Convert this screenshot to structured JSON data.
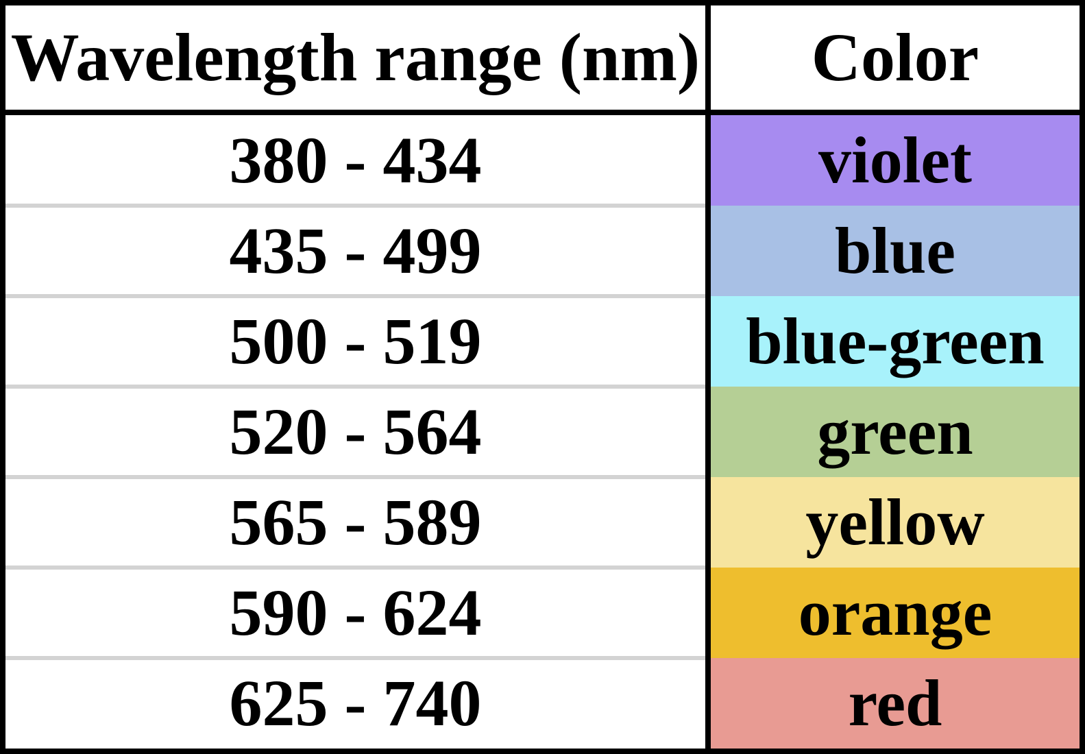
{
  "table": {
    "headers": {
      "range": "Wavelength range (nm)",
      "color": "Color"
    },
    "rows": [
      {
        "range": "380 - 434",
        "color": "violet",
        "swatch": "#a78bf0"
      },
      {
        "range": "435 - 499",
        "color": "blue",
        "swatch": "#a8c0e5"
      },
      {
        "range": "500 - 519",
        "color": "blue-green",
        "swatch": "#a8f2fb"
      },
      {
        "range": "520 - 564",
        "color": "green",
        "swatch": "#b5cf95"
      },
      {
        "range": "565 - 589",
        "color": "yellow",
        "swatch": "#f6e49e"
      },
      {
        "range": "590 - 624",
        "color": "orange",
        "swatch": "#eebe2e"
      },
      {
        "range": "625 - 740",
        "color": "red",
        "swatch": "#e89b93"
      }
    ]
  },
  "colors": {
    "border": "#000000",
    "row_separator": "#d3d3d3",
    "background": "#ffffff"
  }
}
